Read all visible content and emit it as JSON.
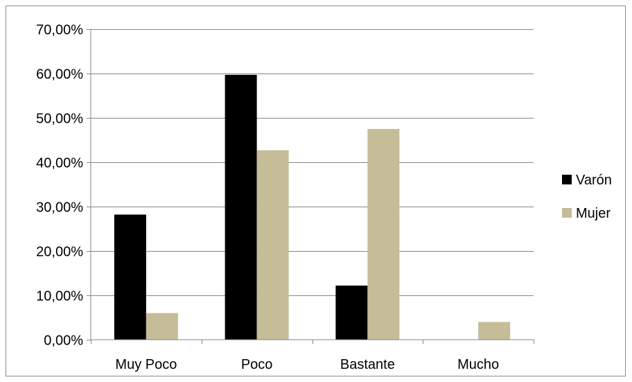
{
  "chart_data": {
    "type": "bar",
    "categories": [
      "Muy Poco",
      "Poco",
      "Bastante",
      "Mucho"
    ],
    "series": [
      {
        "name": "Varón",
        "values": [
          28.2,
          59.7,
          12.2,
          0.0
        ],
        "color": "#000000"
      },
      {
        "name": "Mujer",
        "values": [
          6.0,
          42.7,
          47.5,
          4.0
        ],
        "color": "#c4bd97"
      }
    ],
    "y_ticks": [
      0,
      10,
      20,
      30,
      40,
      50,
      60,
      70
    ],
    "y_tick_labels": [
      "0,00%",
      "10,00%",
      "20,00%",
      "30,00%",
      "40,00%",
      "50,00%",
      "60,00%",
      "70,00%"
    ],
    "ylim": [
      0,
      70
    ],
    "grid": true,
    "legend_position": "right"
  }
}
